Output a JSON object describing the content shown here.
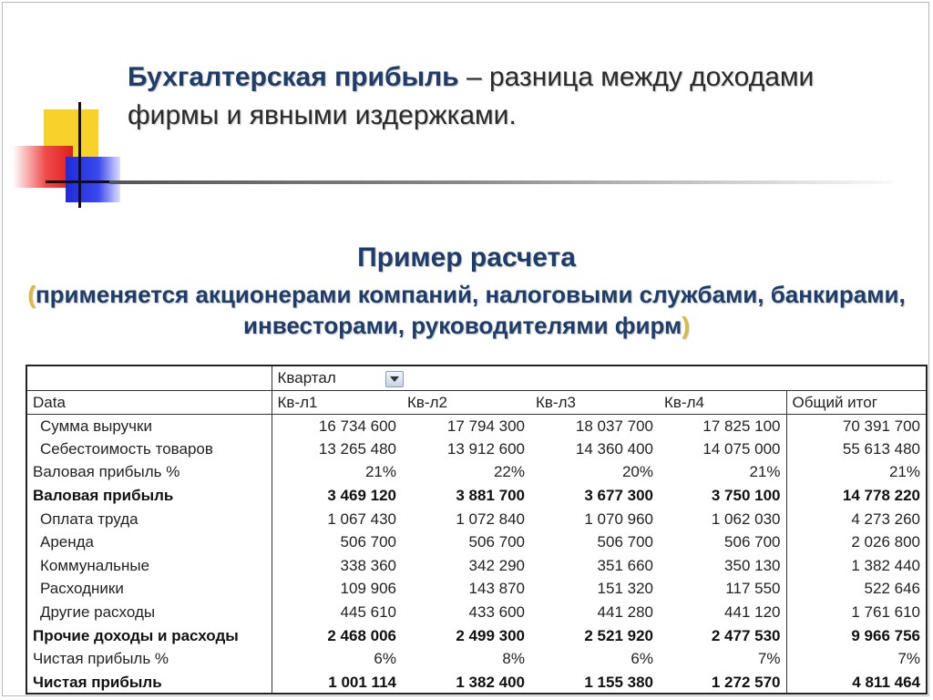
{
  "definition": {
    "term": "Бухгалтерская прибыль",
    "text": " – разница между доходами фирмы и явными издержками."
  },
  "example": {
    "title": "Пример расчета",
    "subtitle_open": "(",
    "subtitle": "применяется акционерами компаний, налоговыми службами, банкирами, инвесторами, руководителями фирм",
    "subtitle_close": ")"
  },
  "table": {
    "pivot_field": "Квартал",
    "headers": [
      "Data",
      "Кв-л1",
      "Кв-л2",
      "Кв-л3",
      "Кв-л4",
      "Общий итог"
    ],
    "rows": [
      {
        "label": "Сумма выручки",
        "values": [
          "16 734 600",
          "17 794 300",
          "18 037 700",
          "17 825 100",
          "70 391 700"
        ]
      },
      {
        "label": "Себестоимость товаров",
        "values": [
          "13 265 480",
          "13 912 600",
          "14 360 400",
          "14 075 000",
          "55 613 480"
        ]
      },
      {
        "label": "Валовая прибыль %",
        "values": [
          "21%",
          "22%",
          "20%",
          "21%",
          "21%"
        ]
      },
      {
        "label": "Валовая прибыль",
        "values": [
          "3 469 120",
          "3 881 700",
          "3 677 300",
          "3 750 100",
          "14 778 220"
        ]
      },
      {
        "label": "Оплата труда",
        "values": [
          "1 067 430",
          "1 072 840",
          "1 070 960",
          "1 062 030",
          "4 273 260"
        ]
      },
      {
        "label": "Аренда",
        "values": [
          "506 700",
          "506 700",
          "506 700",
          "506 700",
          "2 026 800"
        ]
      },
      {
        "label": "Коммунальные",
        "values": [
          "338 360",
          "342 290",
          "351 660",
          "350 130",
          "1 382 440"
        ]
      },
      {
        "label": "Расходники",
        "values": [
          "109 906",
          "143 870",
          "151 320",
          "117 550",
          "522 646"
        ]
      },
      {
        "label": "Другие расходы",
        "values": [
          "445 610",
          "433 600",
          "441 280",
          "441 120",
          "1 761 610"
        ]
      },
      {
        "label": "Прочие доходы и расходы",
        "values": [
          "2 468 006",
          "2 499 300",
          "2 521 920",
          "2 477 530",
          "9 966 756"
        ]
      },
      {
        "label": "Чистая прибыль %",
        "values": [
          "6%",
          "8%",
          "6%",
          "7%",
          "7%"
        ]
      },
      {
        "label": "Чистая прибыль",
        "values": [
          "1 001 114",
          "1 382 400",
          "1 155 380",
          "1 272 570",
          "4 811 464"
        ]
      }
    ]
  }
}
